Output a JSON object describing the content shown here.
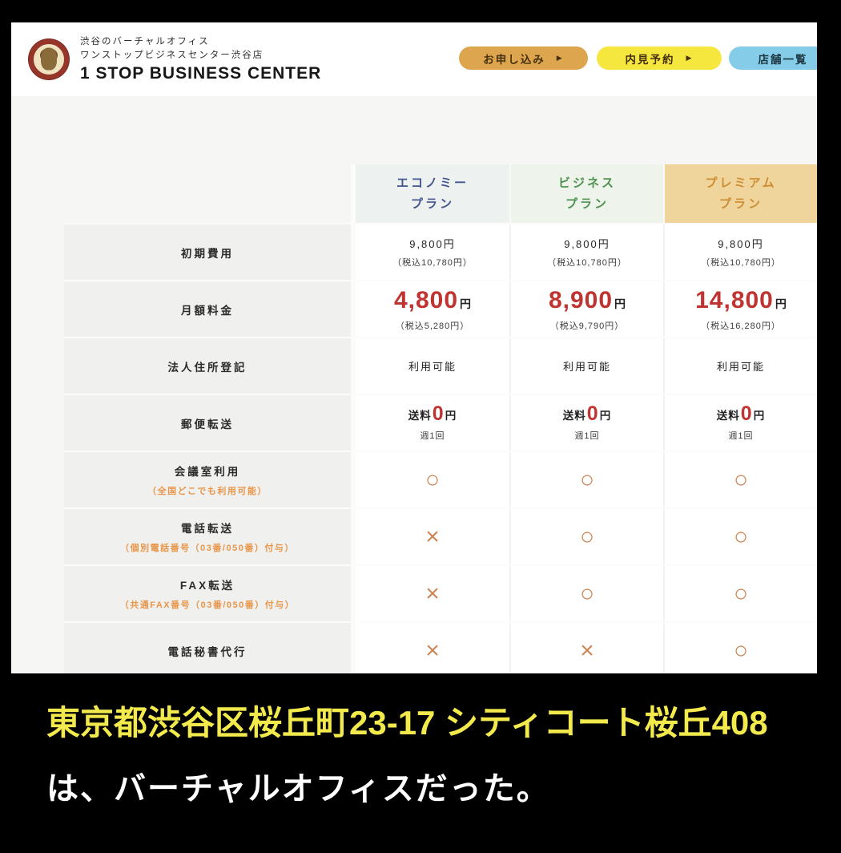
{
  "header": {
    "tagline": "渋谷のバーチャルオフィス",
    "store_name": "ワンストップビジネスセンター渋谷店",
    "brand": "1 STOP BUSINESS CENTER",
    "buttons": [
      {
        "label": "お申し込み",
        "arrow": "▶",
        "color": "#dda54e"
      },
      {
        "label": "内見予約",
        "arrow": "▶",
        "color": "#f6e73e"
      },
      {
        "label": "店舗一覧",
        "arrow": "",
        "color": "#84cce7"
      }
    ]
  },
  "plans": [
    {
      "line1": "エコノミー",
      "line2": "プラン",
      "text_color": "#44568e",
      "bg_color": "#edf1f0"
    },
    {
      "line1": "ビジネス",
      "line2": "プラン",
      "text_color": "#4f9150",
      "bg_color": "#eef4eb"
    },
    {
      "line1": "プレミアム",
      "line2": "プラン",
      "text_color": "#cd8d33",
      "bg_color": "#efd49c"
    }
  ],
  "table": {
    "rows": [
      {
        "label": "初期費用",
        "cells": [
          {
            "main": "9,800円",
            "sub": "（税込10,780円）"
          },
          {
            "main": "9,800円",
            "sub": "（税込10,780円）"
          },
          {
            "main": "9,800円",
            "sub": "（税込10,780円）"
          }
        ]
      },
      {
        "label": "月額料金",
        "cells": [
          {
            "num": "4,800",
            "unit": "円",
            "sub": "（税込5,280円）"
          },
          {
            "num": "8,900",
            "unit": "円",
            "sub": "（税込9,790円）"
          },
          {
            "num": "14,800",
            "unit": "円",
            "sub": "（税込16,280円）"
          }
        ]
      },
      {
        "label": "法人住所登記",
        "cells": [
          {
            "main": "利用可能"
          },
          {
            "main": "利用可能"
          },
          {
            "main": "利用可能"
          }
        ]
      },
      {
        "label": "郵便転送",
        "cells": [
          {
            "prefix": "送料",
            "zero": "0",
            "unit": "円",
            "sub": "週1回"
          },
          {
            "prefix": "送料",
            "zero": "0",
            "unit": "円",
            "sub": "週1回"
          },
          {
            "prefix": "送料",
            "zero": "0",
            "unit": "円",
            "sub": "週1回"
          }
        ]
      },
      {
        "label": "会議室利用",
        "sublabel": "（全国どこでも利用可能）",
        "cells": [
          {
            "symbol": "○"
          },
          {
            "symbol": "○"
          },
          {
            "symbol": "○"
          }
        ]
      },
      {
        "label": "電話転送",
        "sublabel": "（個別電話番号（03番/050番）付与）",
        "cells": [
          {
            "symbol": "×"
          },
          {
            "symbol": "○"
          },
          {
            "symbol": "○"
          }
        ]
      },
      {
        "label": "FAX転送",
        "sublabel": "（共通FAX番号（03番/050番）付与）",
        "cells": [
          {
            "symbol": "×"
          },
          {
            "symbol": "○"
          },
          {
            "symbol": "○"
          }
        ]
      },
      {
        "label": "電話秘書代行",
        "cells": [
          {
            "symbol": "×"
          },
          {
            "symbol": "×"
          },
          {
            "symbol": "○"
          }
        ]
      }
    ]
  },
  "caption": {
    "line1": "東京都渋谷区桜丘町23-17 シティコート桜丘408",
    "line2": "は、バーチャルオフィスだった。"
  },
  "colors": {
    "price_red": "#bf3430",
    "symbol_orange": "#cc8656",
    "sublabel_orange": "#e8964a",
    "caption_yellow": "#f2e94d",
    "body_gray": "#f6f6f4"
  }
}
